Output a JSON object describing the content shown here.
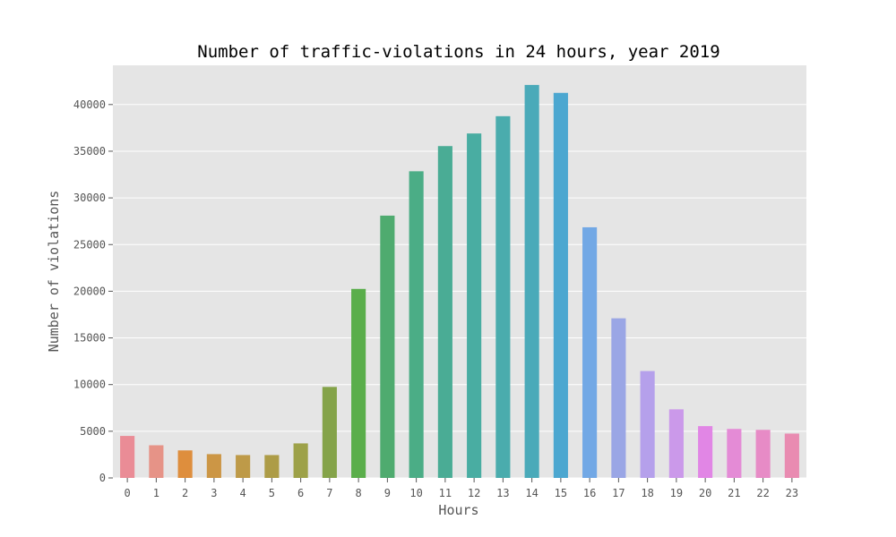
{
  "chart_data": {
    "type": "bar",
    "title": "Number of traffic-violations in 24 hours, year 2019",
    "xlabel": "Hours",
    "ylabel": "Number of violations",
    "categories": [
      "0",
      "1",
      "2",
      "3",
      "4",
      "5",
      "6",
      "7",
      "8",
      "9",
      "10",
      "11",
      "12",
      "13",
      "14",
      "15",
      "16",
      "17",
      "18",
      "19",
      "20",
      "21",
      "22",
      "23"
    ],
    "values": [
      4500,
      3500,
      2950,
      2550,
      2450,
      2450,
      3700,
      9750,
      20250,
      28100,
      32850,
      35550,
      36900,
      38750,
      42100,
      41250,
      26850,
      17100,
      11450,
      7350,
      5550,
      5250,
      5150,
      4750
    ],
    "yticks": [
      0,
      5000,
      10000,
      15000,
      20000,
      25000,
      30000,
      35000,
      40000
    ],
    "ylim": [
      0,
      44200
    ],
    "grid": true,
    "background": "#e5e5e5",
    "colors": [
      "#ea8c96",
      "#e69387",
      "#de8e3d",
      "#cc9645",
      "#be9a48",
      "#ad9c47",
      "#9da148",
      "#84a349",
      "#5aae4b",
      "#4fab6f",
      "#4bad86",
      "#4aac95",
      "#49ada2",
      "#4aacad",
      "#4aaab9",
      "#4ca7d0",
      "#72a8e5",
      "#9aa6e5",
      "#b5a0eb",
      "#cb99ea",
      "#e186e5",
      "#e48bd6",
      "#e78bc6",
      "#e98bb1"
    ]
  }
}
